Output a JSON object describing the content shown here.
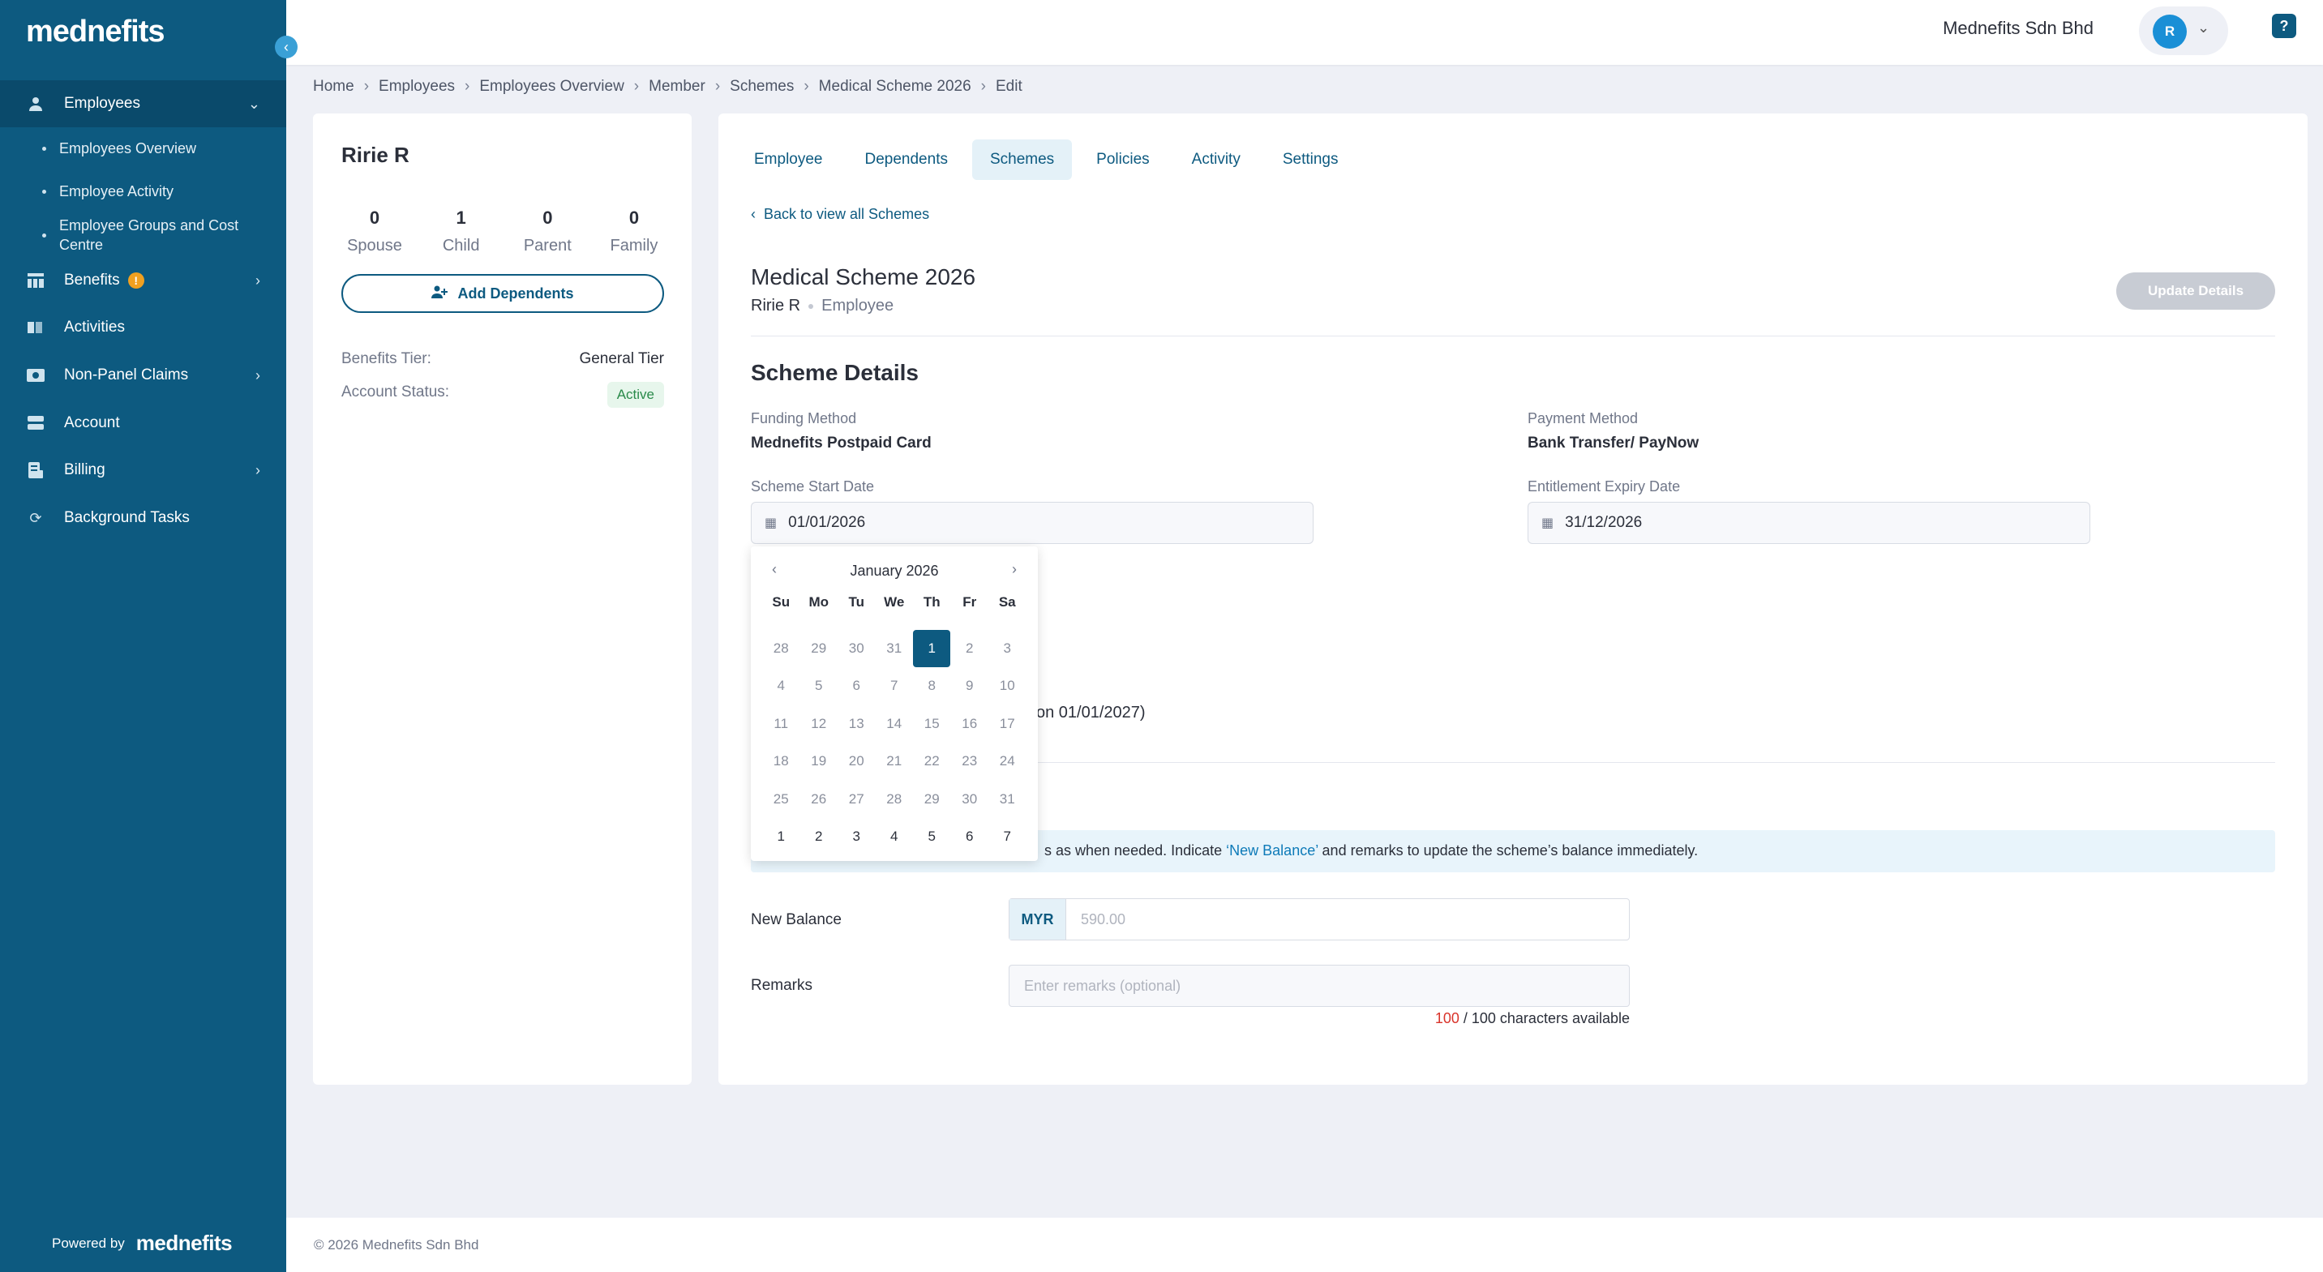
{
  "app": {
    "logo": "mednefits",
    "powered_by": "Powered by",
    "powered_logo": "mednefits"
  },
  "sidebar": {
    "employees": "Employees",
    "sub_items": [
      "Employees Overview",
      "Employee Activity",
      "Employee Groups and Cost Centre"
    ],
    "benefits": "Benefits",
    "benefits_badge": "!",
    "activities": "Activities",
    "non_panel_claims": "Non-Panel Claims",
    "account": "Account",
    "billing": "Billing",
    "background_tasks": "Background Tasks"
  },
  "topbar": {
    "company": "Mednefits Sdn Bhd",
    "avatar_initial": "R",
    "help": "?"
  },
  "breadcrumb": [
    "Home",
    "Employees",
    "Employees Overview",
    "Member",
    "Schemes",
    "Medical Scheme 2026",
    "Edit"
  ],
  "member": {
    "name": "Ririe R",
    "stats": [
      {
        "value": "0",
        "label": "Spouse"
      },
      {
        "value": "1",
        "label": "Child"
      },
      {
        "value": "0",
        "label": "Parent"
      },
      {
        "value": "0",
        "label": "Family"
      }
    ],
    "add_dependents": "Add Dependents",
    "benefits_tier_label": "Benefits Tier:",
    "benefits_tier_value": "General Tier",
    "account_status_label": "Account Status:",
    "account_status_value": "Active"
  },
  "tabs": [
    "Employee",
    "Dependents",
    "Schemes",
    "Policies",
    "Activity",
    "Settings"
  ],
  "active_tab": "Schemes",
  "scheme": {
    "back_link": "Back to view all Schemes",
    "title": "Medical Scheme 2026",
    "member_name": "Ririe R",
    "role": "Employee",
    "update_button": "Update Details",
    "section_title": "Scheme Details",
    "funding_method_label": "Funding Method",
    "funding_method_value": "Mednefits Postpaid Card",
    "payment_method_label": "Payment Method",
    "payment_method_value": "Bank Transfer/ PayNow",
    "start_date_label": "Scheme Start Date",
    "start_date_value": "01/01/2026",
    "expiry_date_label": "Entitlement Expiry Date",
    "expiry_date_value": "31/12/2026",
    "partial_text": "on 01/01/2027)"
  },
  "balance": {
    "banner_text_1": "s as when needed. Indicate ",
    "banner_highlight": "‘New Balance’",
    "banner_text_2": " and remarks to update the scheme’s balance immediately.",
    "new_balance_label": "New Balance",
    "currency": "MYR",
    "balance_placeholder": "590.00",
    "remarks_label": "Remarks",
    "remarks_placeholder": "Enter remarks (optional)",
    "chars_remaining": "100",
    "chars_suffix": " / 100 characters available"
  },
  "datepicker": {
    "title": "January 2026",
    "weekdays": [
      "Su",
      "Mo",
      "Tu",
      "We",
      "Th",
      "Fr",
      "Sa"
    ],
    "days": [
      [
        "28",
        "29",
        "30",
        "31",
        "1",
        "2",
        "3"
      ],
      [
        "4",
        "5",
        "6",
        "7",
        "8",
        "9",
        "10"
      ],
      [
        "11",
        "12",
        "13",
        "14",
        "15",
        "16",
        "17"
      ],
      [
        "18",
        "19",
        "20",
        "21",
        "22",
        "23",
        "24"
      ],
      [
        "25",
        "26",
        "27",
        "28",
        "29",
        "30",
        "31"
      ],
      [
        "1",
        "2",
        "3",
        "4",
        "5",
        "6",
        "7"
      ]
    ],
    "selected": "1"
  },
  "footer": {
    "text": "© 2026 Mednefits Sdn Bhd"
  }
}
